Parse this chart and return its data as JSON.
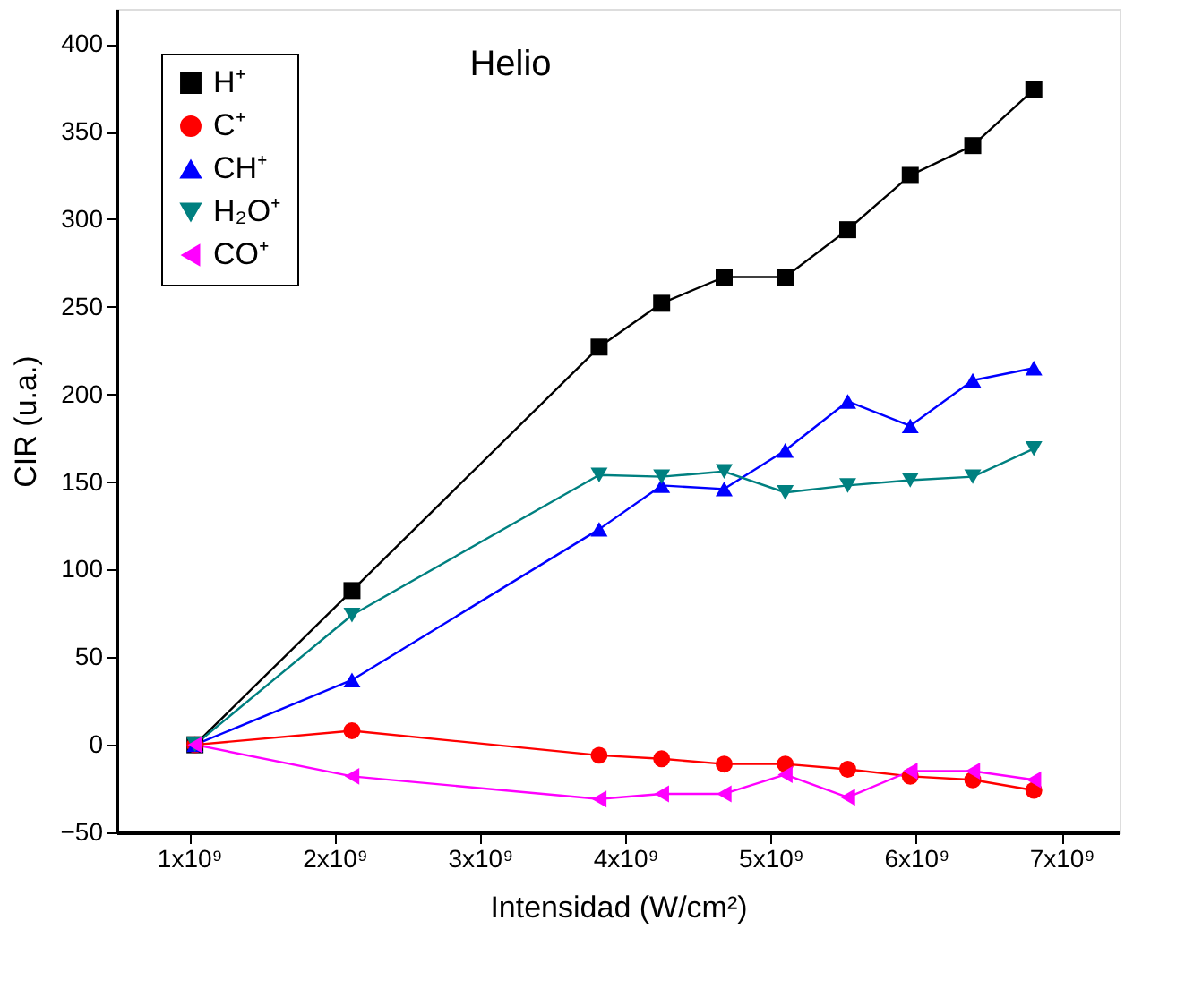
{
  "chart_data": {
    "type": "line",
    "title": "Helio",
    "xlabel": "Intensidad (W/cm²)",
    "ylabel": "CIR (u.a.)",
    "x": [
      1040000000.0,
      2120000000.0,
      3820000000.0,
      4250000000.0,
      4680000000.0,
      5100000000.0,
      5530000000.0,
      5960000000.0,
      6390000000.0,
      6810000000.0
    ],
    "series": [
      {
        "name": "H⁺",
        "color": "#000000",
        "marker": "square",
        "values": [
          0,
          88,
          227,
          252,
          267,
          267,
          294,
          325,
          342,
          374
        ]
      },
      {
        "name": "C⁺",
        "color": "#ff0000",
        "marker": "circle",
        "values": [
          0,
          8,
          -6,
          -8,
          -11,
          -11,
          -14,
          -18,
          -20,
          -26
        ]
      },
      {
        "name": "CH⁺",
        "color": "#0000ff",
        "marker": "triangle",
        "values": [
          0,
          37,
          123,
          148,
          146,
          168,
          196,
          182,
          208,
          215
        ]
      },
      {
        "name": "H₂O⁺",
        "color": "#008080",
        "marker": "triangle-down",
        "values": [
          0,
          74,
          154,
          153,
          156,
          144,
          148,
          151,
          153,
          169
        ]
      },
      {
        "name": "CO⁺",
        "color": "#ff00ff",
        "marker": "triangle-left",
        "values": [
          0,
          -18,
          -31,
          -28,
          -28,
          -17,
          -30,
          -15,
          -15,
          -20
        ]
      }
    ],
    "xlim": [
      500000000.0,
      7400000000.0
    ],
    "xticks": [
      {
        "value": 1000000000.0,
        "label": "1x10⁹"
      },
      {
        "value": 2000000000.0,
        "label": "2x10⁹"
      },
      {
        "value": 3000000000.0,
        "label": "3x10⁹"
      },
      {
        "value": 4000000000.0,
        "label": "4x10⁹"
      },
      {
        "value": 5000000000.0,
        "label": "5x10⁹"
      },
      {
        "value": 6000000000.0,
        "label": "6x10⁹"
      },
      {
        "value": 7000000000.0,
        "label": "7x10⁹"
      }
    ],
    "ylim": [
      -50,
      420
    ],
    "yticks": [
      -50,
      0,
      50,
      100,
      150,
      200,
      250,
      300,
      350,
      400
    ],
    "legend": "top left",
    "grid": false,
    "line_style": "solid"
  }
}
